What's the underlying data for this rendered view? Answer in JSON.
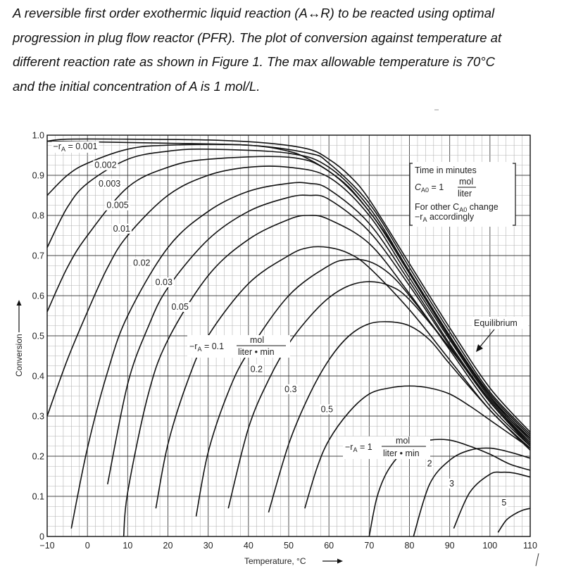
{
  "problem": {
    "lines": [
      "A reversible first order exothermic liquid reaction (A↔R) to be reacted using optimal",
      "progression in plug flow reactor (PFR). The plot of conversion against temperature at",
      "different reaction rate as shown in Figure 1. The max allowable temperature is 70°C",
      "and the initial concentration of A is 1 mol/L."
    ]
  },
  "chart_data": {
    "type": "line",
    "xlabel": "Temperature, °C",
    "ylabel": "Conversion",
    "xlim": [
      -10,
      110
    ],
    "ylim": [
      0,
      1.0
    ],
    "x_ticks": [
      "−10",
      "0",
      "10",
      "20",
      "30",
      "40",
      "50",
      "60",
      "70",
      "80",
      "90",
      "100",
      "110"
    ],
    "y_ticks": [
      "0",
      "0.1",
      "0.2",
      "0.3",
      "0.4",
      "0.5",
      "0.6",
      "0.7",
      "0.8",
      "0.9",
      "1.0"
    ],
    "grid": true,
    "legend_box": {
      "line1": "Time in minutes",
      "cao_lhs": "C",
      "cao_sub": "A0",
      "cao_eq": " = 1",
      "cao_num": "mol",
      "cao_den": "liter",
      "line3a": "For other C",
      "line3_sub": "A0",
      "line3b": " change",
      "line4a": "−r",
      "line4_sub": "A",
      "line4b": " accordingly"
    },
    "equilibrium_label": "Equilibrium",
    "rate_label_main": {
      "lhs": "−r",
      "sub": "A",
      "eq": " = 0.1",
      "num": "mol",
      "den": "liter • min"
    },
    "rate_label_one": {
      "lhs": "−r",
      "sub": "A",
      "eq": " = 1",
      "num": "mol",
      "den": "liter • min"
    },
    "equilibrium": {
      "name": "Equilibrium",
      "x": [
        -10,
        20,
        40,
        50,
        55,
        60,
        65,
        70,
        75,
        80,
        85,
        90,
        95,
        100,
        105,
        110
      ],
      "y": [
        0.985,
        0.98,
        0.975,
        0.96,
        0.94,
        0.91,
        0.87,
        0.81,
        0.74,
        0.66,
        0.58,
        0.5,
        0.42,
        0.35,
        0.29,
        0.245
      ]
    },
    "series": [
      {
        "label": "−rA = 0.001",
        "x": [
          -10,
          -5,
          10,
          30,
          45,
          55,
          60,
          65,
          70,
          80,
          90,
          100,
          110
        ],
        "y": [
          0.985,
          0.99,
          0.99,
          0.988,
          0.98,
          0.965,
          0.94,
          0.9,
          0.84,
          0.68,
          0.52,
          0.37,
          0.26
        ]
      },
      {
        "label": "0.002",
        "x": [
          -10,
          -5,
          0,
          10,
          20,
          40,
          55,
          60,
          70,
          80,
          90,
          100,
          110
        ],
        "y": [
          0.85,
          0.9,
          0.93,
          0.965,
          0.975,
          0.975,
          0.955,
          0.93,
          0.83,
          0.67,
          0.51,
          0.36,
          0.255
        ]
      },
      {
        "label": "0.003",
        "x": [
          -10,
          -5,
          0,
          10,
          20,
          30,
          50,
          60,
          70,
          80,
          90,
          100,
          110
        ],
        "y": [
          0.72,
          0.82,
          0.88,
          0.94,
          0.96,
          0.965,
          0.955,
          0.92,
          0.82,
          0.66,
          0.5,
          0.355,
          0.25
        ]
      },
      {
        "label": "0.005",
        "x": [
          -10,
          -5,
          0,
          10,
          20,
          30,
          50,
          60,
          70,
          80,
          90,
          100,
          110
        ],
        "y": [
          0.56,
          0.67,
          0.75,
          0.87,
          0.92,
          0.94,
          0.945,
          0.91,
          0.81,
          0.655,
          0.495,
          0.35,
          0.245
        ]
      },
      {
        "label": "0.01",
        "x": [
          -10,
          -5,
          0,
          5,
          10,
          20,
          30,
          40,
          50,
          60,
          70,
          80,
          90,
          100,
          110
        ],
        "y": [
          0.3,
          0.44,
          0.56,
          0.67,
          0.75,
          0.85,
          0.9,
          0.92,
          0.92,
          0.895,
          0.8,
          0.645,
          0.49,
          0.345,
          0.24
        ]
      },
      {
        "label": "0.02",
        "x": [
          -4,
          0,
          5,
          10,
          20,
          30,
          40,
          50,
          55,
          60,
          70,
          80,
          90,
          100,
          110
        ],
        "y": [
          0.02,
          0.22,
          0.41,
          0.55,
          0.72,
          0.81,
          0.86,
          0.88,
          0.88,
          0.865,
          0.78,
          0.635,
          0.48,
          0.34,
          0.235
        ]
      },
      {
        "label": "0.03",
        "x": [
          5,
          10,
          15,
          20,
          30,
          40,
          50,
          55,
          60,
          70,
          80,
          90,
          100,
          110
        ],
        "y": [
          0.13,
          0.38,
          0.52,
          0.62,
          0.74,
          0.81,
          0.845,
          0.85,
          0.84,
          0.76,
          0.625,
          0.475,
          0.335,
          0.23
        ]
      },
      {
        "label": "0.05",
        "x": [
          9,
          10,
          15,
          20,
          30,
          40,
          50,
          55,
          60,
          70,
          80,
          90,
          100,
          110
        ],
        "y": [
          0.0,
          0.11,
          0.35,
          0.49,
          0.65,
          0.74,
          0.79,
          0.8,
          0.79,
          0.73,
          0.605,
          0.465,
          0.325,
          0.225
        ]
      },
      {
        "label": "0.1",
        "x": [
          17,
          20,
          25,
          30,
          40,
          50,
          55,
          60,
          65,
          70,
          80,
          90,
          100,
          110
        ],
        "y": [
          0.07,
          0.23,
          0.39,
          0.5,
          0.63,
          0.7,
          0.72,
          0.72,
          0.705,
          0.67,
          0.565,
          0.44,
          0.315,
          0.22
        ]
      },
      {
        "label": "0.2",
        "x": [
          27,
          30,
          35,
          40,
          50,
          60,
          65,
          70,
          75,
          80,
          90,
          100,
          110
        ],
        "y": [
          0.05,
          0.21,
          0.36,
          0.46,
          0.6,
          0.675,
          0.69,
          0.685,
          0.655,
          0.6,
          0.47,
          0.34,
          0.23
        ]
      },
      {
        "label": "0.3",
        "x": [
          35,
          40,
          45,
          50,
          55,
          60,
          65,
          70,
          75,
          80,
          90,
          100,
          110
        ],
        "y": [
          0.07,
          0.27,
          0.39,
          0.48,
          0.545,
          0.595,
          0.625,
          0.635,
          0.625,
          0.59,
          0.47,
          0.335,
          0.225
        ]
      },
      {
        "label": "0.5",
        "x": [
          45,
          50,
          55,
          60,
          65,
          70,
          75,
          80,
          85,
          90,
          100,
          110
        ],
        "y": [
          0.06,
          0.23,
          0.35,
          0.44,
          0.5,
          0.53,
          0.535,
          0.525,
          0.49,
          0.43,
          0.315,
          0.215
        ]
      },
      {
        "label": "1",
        "x": [
          54,
          57,
          60,
          65,
          70,
          75,
          80,
          85,
          90,
          95,
          100,
          105,
          110
        ],
        "y": [
          0.07,
          0.17,
          0.24,
          0.31,
          0.355,
          0.37,
          0.375,
          0.37,
          0.355,
          0.325,
          0.29,
          0.255,
          0.22
        ]
      },
      {
        "label": "2",
        "x": [
          70,
          72,
          75,
          80,
          85,
          90,
          95,
          100,
          105,
          110
        ],
        "y": [
          0.0,
          0.1,
          0.17,
          0.225,
          0.24,
          0.24,
          0.225,
          0.205,
          0.18,
          0.165
        ]
      },
      {
        "label": "3",
        "x": [
          81,
          85,
          90,
          95,
          100,
          105,
          110
        ],
        "y": [
          0.0,
          0.13,
          0.19,
          0.215,
          0.22,
          0.21,
          0.195
        ]
      },
      {
        "label": "5",
        "x": [
          91,
          95,
          100,
          103,
          106,
          110
        ],
        "y": [
          0.02,
          0.11,
          0.155,
          0.16,
          0.158,
          0.148
        ]
      },
      {
        "label": "",
        "x": [
          102,
          104,
          106,
          108,
          110
        ],
        "y": [
          0.01,
          0.04,
          0.055,
          0.065,
          0.07
        ]
      }
    ],
    "curve_labels": [
      {
        "text": "−rA = 0.001",
        "x": -3,
        "y": 0.965
      },
      {
        "text": "0.002",
        "x": 4.5,
        "y": 0.918
      },
      {
        "text": "0.003",
        "x": 5.5,
        "y": 0.872
      },
      {
        "text": "0.005",
        "x": 7.5,
        "y": 0.818
      },
      {
        "text": "0.01",
        "x": 8.5,
        "y": 0.76
      },
      {
        "text": "0.02",
        "x": 13.5,
        "y": 0.675
      },
      {
        "text": "0.03",
        "x": 19,
        "y": 0.626
      },
      {
        "text": "0.05",
        "x": 23,
        "y": 0.565
      },
      {
        "text": "0.2",
        "x": 42,
        "y": 0.41
      },
      {
        "text": "0.3",
        "x": 50.5,
        "y": 0.36
      },
      {
        "text": "0.5",
        "x": 59.5,
        "y": 0.31
      },
      {
        "text": "2",
        "x": 85,
        "y": 0.175
      },
      {
        "text": "3",
        "x": 90.5,
        "y": 0.125
      },
      {
        "text": "5",
        "x": 103.5,
        "y": 0.077
      }
    ]
  }
}
